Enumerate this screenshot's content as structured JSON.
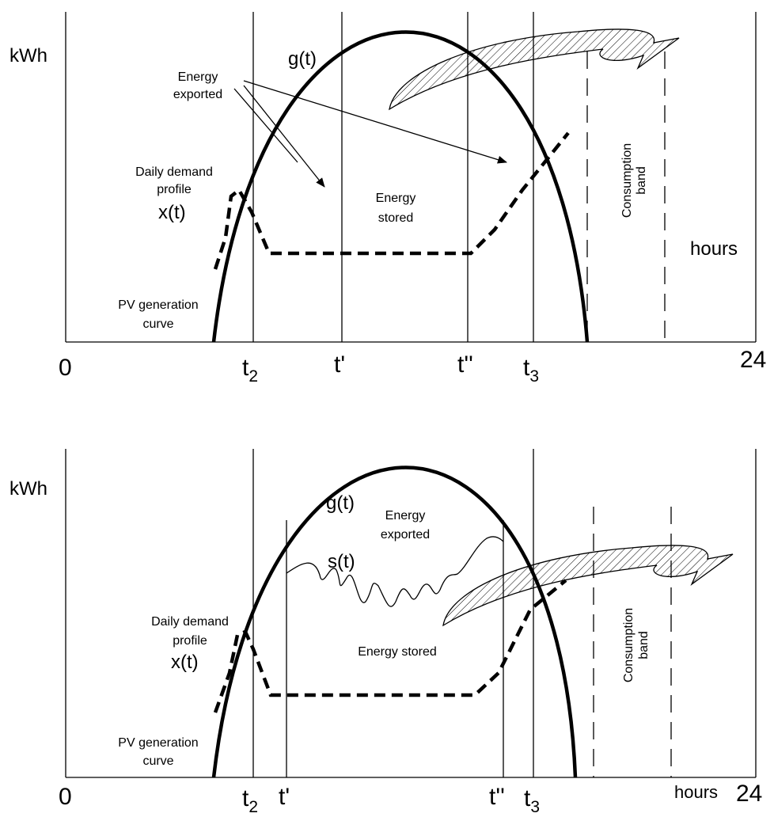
{
  "panels": [
    {
      "y_label": "kWh",
      "x_label": "hours",
      "curve_label": "g(t)",
      "exported_label": [
        "Energy",
        "exported"
      ],
      "stored_label": [
        "Energy",
        "stored"
      ],
      "demand_label": [
        "Daily demand",
        "profile"
      ],
      "demand_symbol": "x(t)",
      "pv_label": [
        "PV generation",
        "curve"
      ],
      "band_label": [
        "Consumption",
        "band"
      ],
      "ticks": [
        {
          "base": "0"
        },
        {
          "base": "t",
          "sub": "2"
        },
        {
          "base": "t'"
        },
        {
          "base": "t''"
        },
        {
          "base": "t",
          "sub": "3"
        },
        {
          "base": "24"
        }
      ]
    },
    {
      "y_label": "kWh",
      "x_label": "hours",
      "curve_label": "g(t)",
      "storage_label": "s(t)",
      "exported_label": [
        "Energy",
        "exported"
      ],
      "stored_label": [
        "Energy stored"
      ],
      "demand_label": [
        "Daily demand",
        "profile"
      ],
      "demand_symbol": "x(t)",
      "pv_label": [
        "PV generation",
        "curve"
      ],
      "band_label": [
        "Consumption",
        "band"
      ],
      "ticks": [
        {
          "base": "0"
        },
        {
          "base": "t",
          "sub": "2"
        },
        {
          "base": "t'"
        },
        {
          "base": "t''"
        },
        {
          "base": "t",
          "sub": "3"
        },
        {
          "base": "24"
        }
      ]
    }
  ]
}
